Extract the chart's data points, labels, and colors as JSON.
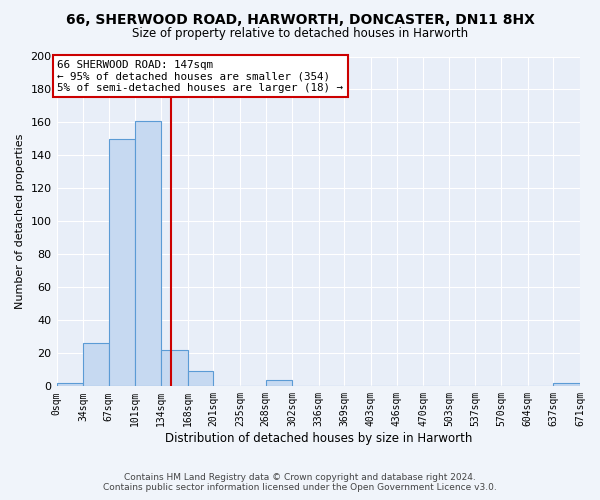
{
  "title": "66, SHERWOOD ROAD, HARWORTH, DONCASTER, DN11 8HX",
  "subtitle": "Size of property relative to detached houses in Harworth",
  "xlabel": "Distribution of detached houses by size in Harworth",
  "ylabel": "Number of detached properties",
  "bin_edges": [
    0,
    34,
    67,
    101,
    134,
    168,
    201,
    235,
    268,
    302,
    336,
    369,
    403,
    436,
    470,
    503,
    537,
    570,
    604,
    637,
    671
  ],
  "bar_heights": [
    2,
    26,
    150,
    161,
    22,
    9,
    0,
    0,
    4,
    0,
    0,
    0,
    0,
    0,
    0,
    0,
    0,
    0,
    0,
    2
  ],
  "bar_color": "#c6d9f1",
  "bar_edge_color": "#5b9bd5",
  "property_line_x": 147,
  "property_line_color": "#cc0000",
  "ylim": [
    0,
    200
  ],
  "yticks": [
    0,
    20,
    40,
    60,
    80,
    100,
    120,
    140,
    160,
    180,
    200
  ],
  "annotation_title": "66 SHERWOOD ROAD: 147sqm",
  "annotation_line1": "← 95% of detached houses are smaller (354)",
  "annotation_line2": "5% of semi-detached houses are larger (18) →",
  "annotation_box_facecolor": "#ffffff",
  "annotation_box_edgecolor": "#cc0000",
  "tick_labels": [
    "0sqm",
    "34sqm",
    "67sqm",
    "101sqm",
    "134sqm",
    "168sqm",
    "201sqm",
    "235sqm",
    "268sqm",
    "302sqm",
    "336sqm",
    "369sqm",
    "403sqm",
    "436sqm",
    "470sqm",
    "503sqm",
    "537sqm",
    "570sqm",
    "604sqm",
    "637sqm",
    "671sqm"
  ],
  "footer_line1": "Contains HM Land Registry data © Crown copyright and database right 2024.",
  "footer_line2": "Contains public sector information licensed under the Open Government Licence v3.0.",
  "plot_bg_color": "#e8eef8",
  "fig_bg_color": "#f0f4fa",
  "grid_color": "#ffffff",
  "title_fontsize": 10,
  "subtitle_fontsize": 8.5,
  "ylabel_fontsize": 8,
  "xlabel_fontsize": 8.5,
  "tick_fontsize": 7,
  "footer_fontsize": 6.5
}
